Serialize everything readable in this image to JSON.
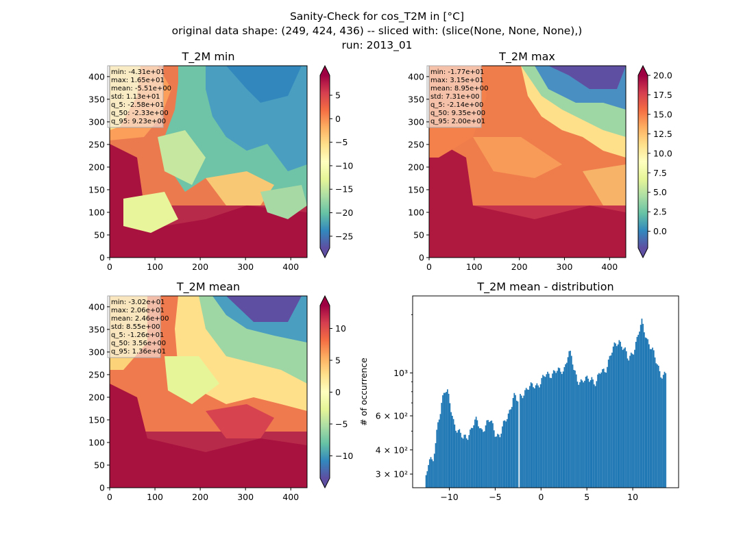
{
  "figure": {
    "title_lines": [
      "Sanity-Check for cos_T2M in [°C]",
      "original data shape: (249, 424, 436) -- sliced with: (slice(None, None, None),)",
      "run: 2013_01"
    ]
  },
  "panels": [
    {
      "title": "T_2M min",
      "stats": [
        "min: -4.31e+01",
        "max: 1.65e+01",
        "mean: -5.51e+00",
        "std: 1.13e+01",
        "q_5: -2.58e+01",
        "q_50: -2.33e+00",
        "q_95: 9.23e+00"
      ],
      "x_ticks": [
        "0",
        "100",
        "200",
        "300",
        "400"
      ],
      "y_ticks": [
        "0",
        "50",
        "100",
        "150",
        "200",
        "250",
        "300",
        "350",
        "400"
      ],
      "colorbar": {
        "vmin": -27.5,
        "vmax": 9.23,
        "ticks": [
          -25,
          -20,
          -15,
          -10,
          -5,
          0,
          5
        ],
        "tick_labels": [
          "−25",
          "−20",
          "−15",
          "−10",
          "−5",
          "0",
          "5"
        ]
      }
    },
    {
      "title": "T_2M max",
      "stats": [
        "min: -1.77e+01",
        "max: 3.15e+01",
        "mean: 8.95e+00",
        "std: 7.31e+00",
        "q_5: -2.14e+00",
        "q_50: 9.35e+00",
        "q_95: 2.00e+01"
      ],
      "x_ticks": [
        "0",
        "100",
        "200",
        "300",
        "400"
      ],
      "y_ticks": [
        "0",
        "50",
        "100",
        "150",
        "200",
        "250",
        "300",
        "350",
        "400"
      ],
      "colorbar": {
        "vmin": -2.14,
        "vmax": 20.0,
        "ticks": [
          0,
          2.5,
          5,
          7.5,
          10,
          12.5,
          15,
          17.5,
          20
        ],
        "tick_labels": [
          "0.0",
          "2.5",
          "5.0",
          "7.5",
          "10.0",
          "12.5",
          "15.0",
          "17.5",
          "20.0"
        ]
      }
    },
    {
      "title": "T_2M mean",
      "stats": [
        "min: -3.02e+01",
        "max: 2.06e+01",
        "mean: 2.46e+00",
        "std: 8.55e+00",
        "q_5: -1.26e+01",
        "q_50: 3.56e+00",
        "q_95: 1.36e+01"
      ],
      "x_ticks": [
        "0",
        "100",
        "200",
        "300",
        "400"
      ],
      "y_ticks": [
        "0",
        "50",
        "100",
        "150",
        "200",
        "250",
        "300",
        "350",
        "400"
      ],
      "colorbar": {
        "vmin": -13.5,
        "vmax": 13.6,
        "ticks": [
          -10,
          -5,
          0,
          5,
          10
        ],
        "tick_labels": [
          "−10",
          "−5",
          "0",
          "5",
          "10"
        ]
      }
    }
  ],
  "colors": {
    "hist_bar": "#1f77b4",
    "colormap": "Spectral_r"
  },
  "chart_data": [
    {
      "type": "heatmap",
      "title": "T_2M min",
      "xlim": [
        0,
        436
      ],
      "ylim": [
        0,
        424
      ],
      "x_ticks": [
        0,
        100,
        200,
        300,
        400
      ],
      "y_ticks": [
        0,
        50,
        100,
        150,
        200,
        250,
        300,
        350,
        400
      ],
      "colorbar_range": [
        -27.5,
        9.23
      ],
      "colorbar_ticks": [
        -25,
        -20,
        -15,
        -10,
        -5,
        0,
        5
      ]
    },
    {
      "type": "heatmap",
      "title": "T_2M max",
      "xlim": [
        0,
        436
      ],
      "ylim": [
        0,
        424
      ],
      "x_ticks": [
        0,
        100,
        200,
        300,
        400
      ],
      "y_ticks": [
        0,
        50,
        100,
        150,
        200,
        250,
        300,
        350,
        400
      ],
      "colorbar_range": [
        -2.14,
        20.0
      ],
      "colorbar_ticks": [
        0,
        2.5,
        5,
        7.5,
        10,
        12.5,
        15,
        17.5,
        20
      ]
    },
    {
      "type": "heatmap",
      "title": "T_2M mean",
      "xlim": [
        0,
        436
      ],
      "ylim": [
        0,
        424
      ],
      "x_ticks": [
        0,
        100,
        200,
        300,
        400
      ],
      "y_ticks": [
        0,
        50,
        100,
        150,
        200,
        250,
        300,
        350,
        400
      ],
      "colorbar_range": [
        -13.5,
        13.6
      ],
      "colorbar_ticks": [
        -10,
        -5,
        0,
        5,
        10
      ]
    },
    {
      "type": "bar",
      "title": "T_2M mean - distribution",
      "ylabel": "# of occurrence",
      "yscale": "log",
      "xlim": [
        -14,
        15
      ],
      "ylim": [
        255,
        2500
      ],
      "x_ticks": [
        -10,
        -5,
        0,
        5,
        10
      ],
      "x_tick_labels": [
        "−10",
        "−5",
        "0",
        "5",
        "10"
      ],
      "y_ticks": [
        300,
        400,
        600,
        1000
      ],
      "y_tick_labels": [
        "3 × 10²",
        "4 × 10²",
        "6 × 10²",
        "10³"
      ],
      "bin_range": [
        -12.6,
        13.6
      ],
      "bin_width": 0.13,
      "profile": [
        [
          -12.6,
          280
        ],
        [
          -12.4,
          320
        ],
        [
          -12.2,
          380
        ],
        [
          -12.0,
          360
        ],
        [
          -11.8,
          330
        ],
        [
          -11.5,
          420
        ],
        [
          -11.2,
          560
        ],
        [
          -11.0,
          640
        ],
        [
          -10.8,
          740
        ],
        [
          -10.5,
          820
        ],
        [
          -10.2,
          780
        ],
        [
          -9.8,
          640
        ],
        [
          -9.5,
          560
        ],
        [
          -9.0,
          500
        ],
        [
          -8.5,
          450
        ],
        [
          -8.0,
          480
        ],
        [
          -7.5,
          530
        ],
        [
          -7.0,
          560
        ],
        [
          -6.5,
          510
        ],
        [
          -6.0,
          540
        ],
        [
          -5.5,
          560
        ],
        [
          -5.0,
          500
        ],
        [
          -4.5,
          470
        ],
        [
          -4.0,
          540
        ],
        [
          -3.5,
          630
        ],
        [
          -3.2,
          700
        ],
        [
          -3.0,
          770
        ],
        [
          -2.6,
          700
        ],
        [
          -2.2,
          760
        ],
        [
          -1.8,
          820
        ],
        [
          -1.0,
          840
        ],
        [
          -0.5,
          880
        ],
        [
          0.0,
          900
        ],
        [
          0.5,
          960
        ],
        [
          1.0,
          1000
        ],
        [
          1.5,
          1020
        ],
        [
          2.0,
          1000
        ],
        [
          2.5,
          1050
        ],
        [
          3.0,
          1280
        ],
        [
          3.3,
          1200
        ],
        [
          3.6,
          1020
        ],
        [
          4.0,
          940
        ],
        [
          4.5,
          900
        ],
        [
          5.0,
          910
        ],
        [
          5.5,
          960
        ],
        [
          6.0,
          880
        ],
        [
          6.5,
          1000
        ],
        [
          7.0,
          1050
        ],
        [
          7.5,
          1200
        ],
        [
          8.0,
          1350
        ],
        [
          8.5,
          1500
        ],
        [
          9.0,
          1350
        ],
        [
          9.5,
          1150
        ],
        [
          10.0,
          1300
        ],
        [
          10.5,
          1500
        ],
        [
          11.0,
          1800
        ],
        [
          11.5,
          1550
        ],
        [
          12.0,
          1350
        ],
        [
          12.5,
          1150
        ],
        [
          13.0,
          1020
        ],
        [
          13.3,
          980
        ],
        [
          13.6,
          980
        ]
      ],
      "gap_at": -2.45
    }
  ]
}
